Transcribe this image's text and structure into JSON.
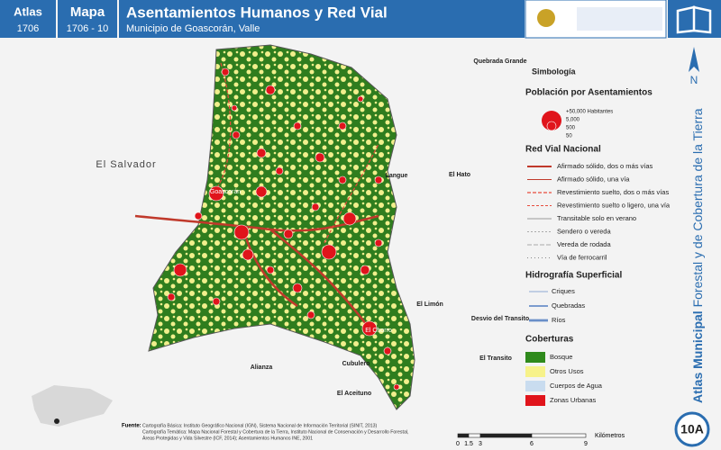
{
  "header": {
    "atlas_label": "Atlas",
    "atlas_code": "1706",
    "map_label": "Mapa",
    "map_code": "1706 - 10",
    "title": "Asentamientos Humanos y Red Vial",
    "subtitle": "Municipio de Goascorán, Valle"
  },
  "side": {
    "north": "N",
    "title_bold": "Atlas Municipal",
    "title_rest": "Forestal y de Cobertura de la Tierra",
    "map_number": "10A"
  },
  "map_labels": {
    "quebrada_grande": "Quebrada Grande",
    "el_salvador": "El Salvador",
    "langue": "Langue",
    "el_hato": "El Hato",
    "el_limon": "El Limón",
    "desvio": "Desvio del Transito",
    "el_transito": "El Transito",
    "alianza": "Alianza",
    "cubulero": "Cubulero",
    "el_aceituno": "El Aceituno",
    "goascoran": "Goascorán",
    "el_chorro": "El Chorro"
  },
  "legend": {
    "title": "Simbología",
    "population": {
      "title": "Población por Asentamientos",
      "items": [
        "+50,000 Habitantes",
        "5,000",
        "500",
        "50"
      ]
    },
    "roads": {
      "title": "Red Vial Nacional",
      "items": [
        "Afirmado sólido, dos o más vías",
        "Afirmado sólido, una vía",
        "Revestimiento suelto, dos o más vías",
        "Revestimiento suelto o ligero, una vía",
        "Transitable solo en verano",
        "Sendero o vereda",
        "Vereda de rodada",
        "Vía de ferrocarril"
      ]
    },
    "hydro": {
      "title": "Hidrografía Superficial",
      "items": [
        "Criques",
        "Quebradas",
        "Ríos"
      ]
    },
    "cover": {
      "title": "Coberturas",
      "items": [
        "Bosque",
        "Otros Usos",
        "Cuerpos de Agua",
        "Zonas Urbanas"
      ]
    }
  },
  "scale": {
    "ticks": [
      "0",
      "1.5",
      "3",
      "6",
      "9"
    ],
    "unit": "Kilómetros"
  },
  "source": {
    "label": "Fuente:",
    "lines": [
      "Cartografía Básica: Instituto Geográfico Nacional (IGN), Sistema Nacional de Información Territorial (SINIT, 2013)",
      "Cartografía Temática: Mapa Nacional Forestal y Cobertura de la Tierra, Instituto Nacional de Conservación y Desarrollo Forestal,",
      "Áreas Protegidas y Vida Silvestre (ICF, 2014); Asentamientos Humanos INE, 2001"
    ]
  }
}
